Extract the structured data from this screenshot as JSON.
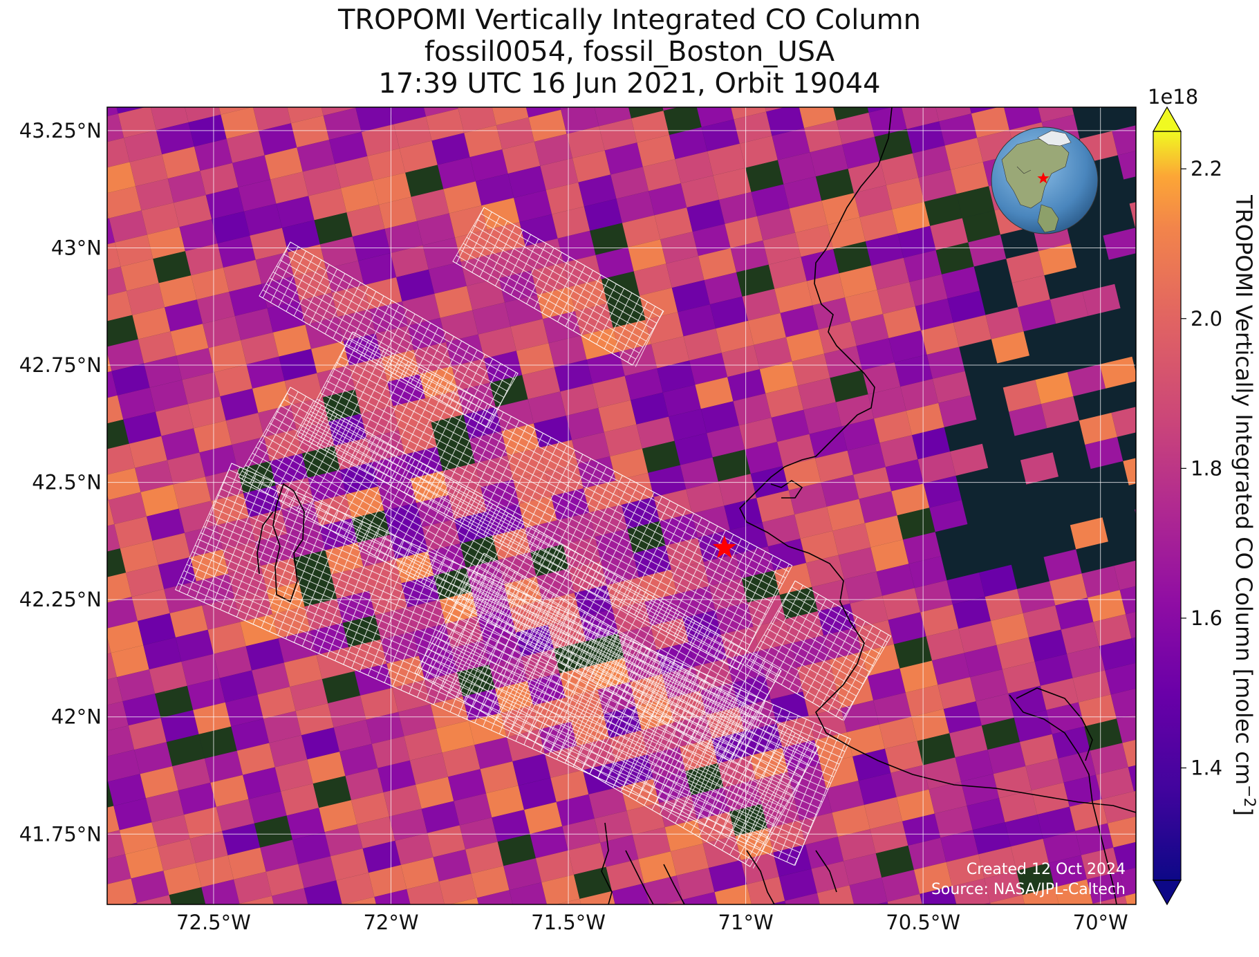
{
  "title": {
    "line1": "TROPOMI Vertically Integrated CO Column",
    "line2": "fossil0054, fossil_Boston_USA",
    "line3": "17:39 UTC 16 Jun 2021, Orbit 19044"
  },
  "map": {
    "lon_range": [
      -72.8,
      -69.9
    ],
    "lat_range": [
      41.6,
      43.3
    ],
    "lon_ticks": [
      {
        "value": -72.5,
        "label": "72.5°W"
      },
      {
        "value": -72.0,
        "label": "72°W"
      },
      {
        "value": -71.5,
        "label": "71.5°W"
      },
      {
        "value": -71.0,
        "label": "71°W"
      },
      {
        "value": -70.5,
        "label": "70.5°W"
      },
      {
        "value": -70.0,
        "label": "70°W"
      }
    ],
    "lat_ticks": [
      {
        "value": 43.25,
        "label": "43.25°N"
      },
      {
        "value": 43.0,
        "label": "43°N"
      },
      {
        "value": 42.75,
        "label": "42.75°N"
      },
      {
        "value": 42.5,
        "label": "42.5°N"
      },
      {
        "value": 42.25,
        "label": "42.25°N"
      },
      {
        "value": 42.0,
        "label": "42°N"
      },
      {
        "value": 41.75,
        "label": "41.75°N"
      }
    ],
    "site_marker": {
      "lon": -71.06,
      "lat": 42.36,
      "color": "#ff0000",
      "icon": "red-star-icon"
    },
    "credit_line1": "Created 12 Oct 2024",
    "credit_line2": "Source: NASA/JPL-Caltech",
    "ocean_color": "#0f2430",
    "land_color": "#1e3a1c",
    "footprint_color": "#ffffff",
    "inset_globe": {
      "icon": "globe-inset-icon",
      "marker_color": "#ff0000"
    }
  },
  "colorbar": {
    "label": "TROPOMI Vertically Integrated CO Column [molec cm",
    "label_exponent": "−2",
    "label_end": "]",
    "multiplier": "1e18",
    "colormap": "plasma",
    "range": [
      1.25,
      2.25
    ],
    "extend": "both",
    "ticks": [
      {
        "value": 1.4,
        "label": "1.4"
      },
      {
        "value": 1.6,
        "label": "1.6"
      },
      {
        "value": 1.8,
        "label": "1.8"
      },
      {
        "value": 2.0,
        "label": "2.0"
      },
      {
        "value": 2.2,
        "label": "2.2"
      }
    ]
  }
}
